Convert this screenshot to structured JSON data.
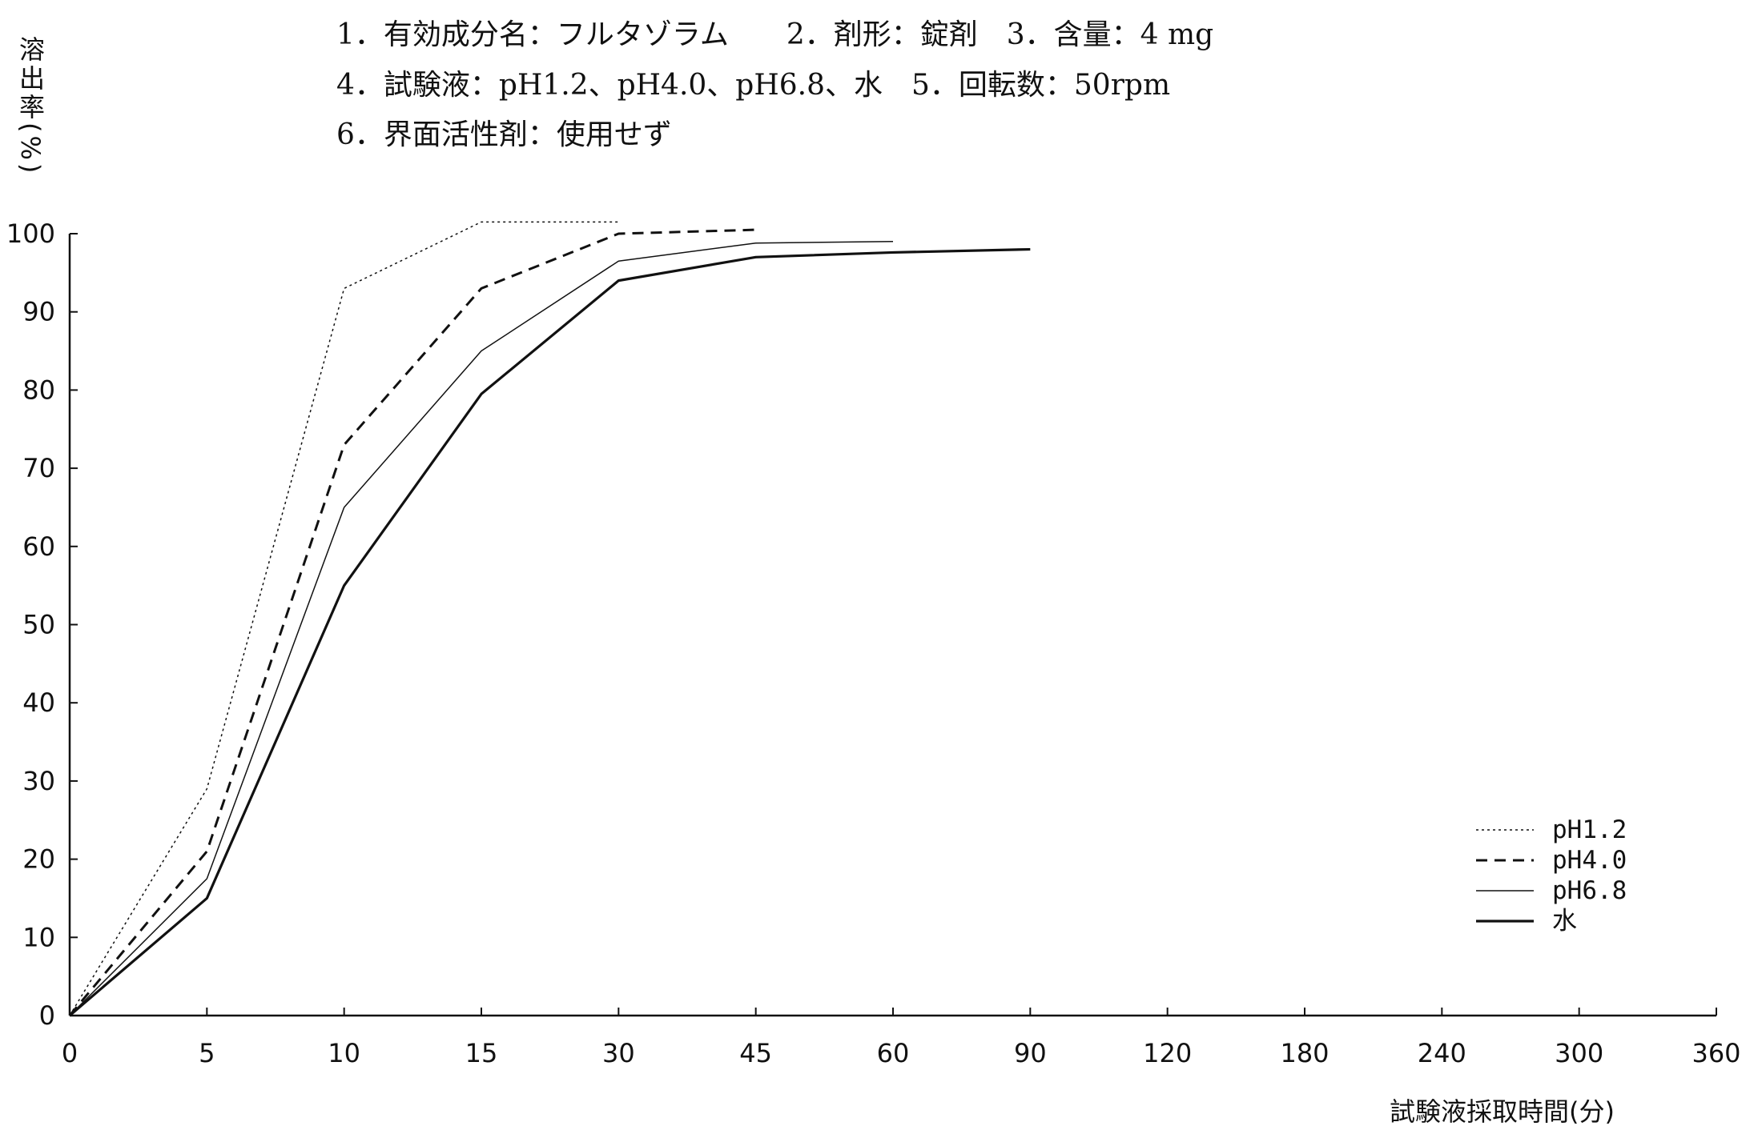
{
  "header": {
    "line1": "1．有効成分名：フルタゾラム　　2．剤形：錠剤　3．含量：4 mg",
    "line2": "4．試験液：pH1.2、pH4.0、pH6.8、水　5．回転数：50rpm",
    "line3": "6．界面活性剤：使用せず"
  },
  "chart_data": {
    "type": "line",
    "title": "",
    "xlabel": "試験液採取時間(分)",
    "ylabel_chars": [
      "溶",
      "出",
      "率",
      "(",
      "%",
      ")"
    ],
    "ylabel": "溶出率(%)",
    "x_categories": [
      "0",
      "5",
      "10",
      "15",
      "30",
      "45",
      "60",
      "90",
      "120",
      "180",
      "240",
      "300",
      "360"
    ],
    "x_scale": "categorical-evenly-spaced",
    "ylim": [
      0,
      100
    ],
    "yticks": [
      "0",
      "10",
      "20",
      "30",
      "40",
      "50",
      "60",
      "70",
      "80",
      "90",
      "100"
    ],
    "grid": false,
    "legend_position": "bottom-right",
    "series": [
      {
        "name": "pH1.2",
        "style": "dotted",
        "x": [
          "0",
          "5",
          "10",
          "15",
          "30"
        ],
        "values": [
          0,
          29,
          93,
          101.5,
          101.5
        ]
      },
      {
        "name": "pH4.0",
        "style": "dashed",
        "x": [
          "0",
          "5",
          "10",
          "15",
          "30",
          "45"
        ],
        "values": [
          0,
          21,
          73,
          93,
          100,
          100.5
        ]
      },
      {
        "name": "pH6.8",
        "style": "thin-solid",
        "x": [
          "0",
          "5",
          "10",
          "15",
          "30",
          "45",
          "60"
        ],
        "values": [
          0,
          17.5,
          65,
          85,
          96.5,
          98.8,
          99
        ]
      },
      {
        "name": "水",
        "style": "thick-solid",
        "x": [
          "0",
          "5",
          "10",
          "15",
          "30",
          "45",
          "60",
          "90"
        ],
        "values": [
          0,
          15,
          55,
          79.5,
          94,
          97,
          97.6,
          98
        ]
      }
    ]
  }
}
